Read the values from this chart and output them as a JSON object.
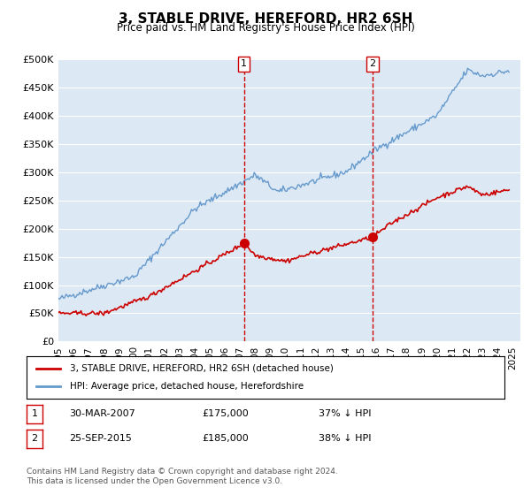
{
  "title": "3, STABLE DRIVE, HEREFORD, HR2 6SH",
  "subtitle": "Price paid vs. HM Land Registry's House Price Index (HPI)",
  "ylabel_ticks": [
    "£0",
    "£50K",
    "£100K",
    "£150K",
    "£200K",
    "£250K",
    "£300K",
    "£350K",
    "£400K",
    "£450K",
    "£500K"
  ],
  "ytick_values": [
    0,
    50000,
    100000,
    150000,
    200000,
    250000,
    300000,
    350000,
    400000,
    450000,
    500000
  ],
  "ylim": [
    0,
    500000
  ],
  "xlim_start": 1995.0,
  "xlim_end": 2025.5,
  "bg_color": "#dce9f5",
  "plot_bg_color": "#dce9f5",
  "hpi_line_color": "#6699cc",
  "price_line_color": "#cc0000",
  "marker1_x": 2007.25,
  "marker1_y": 175000,
  "marker2_x": 2015.75,
  "marker2_y": 185000,
  "marker_color": "#cc0000",
  "vline_color": "#cc0000",
  "legend_label_price": "3, STABLE DRIVE, HEREFORD, HR2 6SH (detached house)",
  "legend_label_hpi": "HPI: Average price, detached house, Herefordshire",
  "table_row1": [
    "1",
    "30-MAR-2007",
    "£175,000",
    "37% ↓ HPI"
  ],
  "table_row2": [
    "2",
    "25-SEP-2015",
    "£185,000",
    "38% ↓ HPI"
  ],
  "footer": "Contains HM Land Registry data © Crown copyright and database right 2024.\nThis data is licensed under the Open Government Licence v3.0.",
  "xlabel_years": [
    "1995",
    "1996",
    "1997",
    "1998",
    "1999",
    "2000",
    "2001",
    "2002",
    "2003",
    "2004",
    "2005",
    "2006",
    "2007",
    "2008",
    "2009",
    "2010",
    "2011",
    "2012",
    "2013",
    "2014",
    "2015",
    "2016",
    "2017",
    "2018",
    "2019",
    "2020",
    "2021",
    "2022",
    "2023",
    "2024",
    "2025"
  ]
}
